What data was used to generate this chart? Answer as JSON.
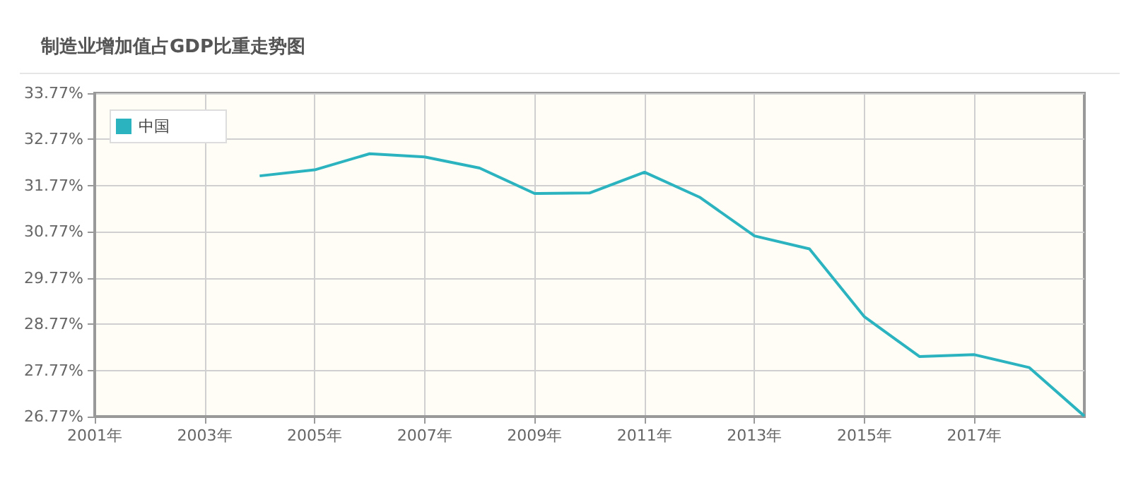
{
  "chart_data": {
    "type": "line",
    "title": "制造业增加值占GDP比重走势图",
    "x": [
      2004,
      2005,
      2006,
      2007,
      2008,
      2009,
      2010,
      2011,
      2012,
      2013,
      2014,
      2015,
      2016,
      2017,
      2018,
      2019
    ],
    "series": [
      {
        "name": "中国",
        "color": "#2bb3c0",
        "values": [
          31.98,
          32.11,
          32.46,
          32.39,
          32.15,
          31.6,
          31.61,
          32.06,
          31.52,
          30.68,
          30.4,
          28.93,
          28.07,
          28.11,
          27.83,
          26.78
        ]
      }
    ],
    "xlim": [
      2001,
      2019
    ],
    "xticks": [
      {
        "value": 2001,
        "label": "2001年"
      },
      {
        "value": 2003,
        "label": "2003年"
      },
      {
        "value": 2005,
        "label": "2005年"
      },
      {
        "value": 2007,
        "label": "2007年"
      },
      {
        "value": 2009,
        "label": "2009年"
      },
      {
        "value": 2011,
        "label": "2011年"
      },
      {
        "value": 2013,
        "label": "2013年"
      },
      {
        "value": 2015,
        "label": "2015年"
      },
      {
        "value": 2017,
        "label": "2017年"
      }
    ],
    "ylim": [
      26.77,
      33.77
    ],
    "yticks": [
      {
        "value": 26.77,
        "label": "26.77%"
      },
      {
        "value": 27.77,
        "label": "27.77%"
      },
      {
        "value": 28.77,
        "label": "28.77%"
      },
      {
        "value": 29.77,
        "label": "29.77%"
      },
      {
        "value": 30.77,
        "label": "30.77%"
      },
      {
        "value": 31.77,
        "label": "31.77%"
      },
      {
        "value": 32.77,
        "label": "32.77%"
      },
      {
        "value": 33.77,
        "label": "33.77%"
      }
    ],
    "grid": true,
    "legend": "top left",
    "marker": "none",
    "line_style": "solid"
  }
}
